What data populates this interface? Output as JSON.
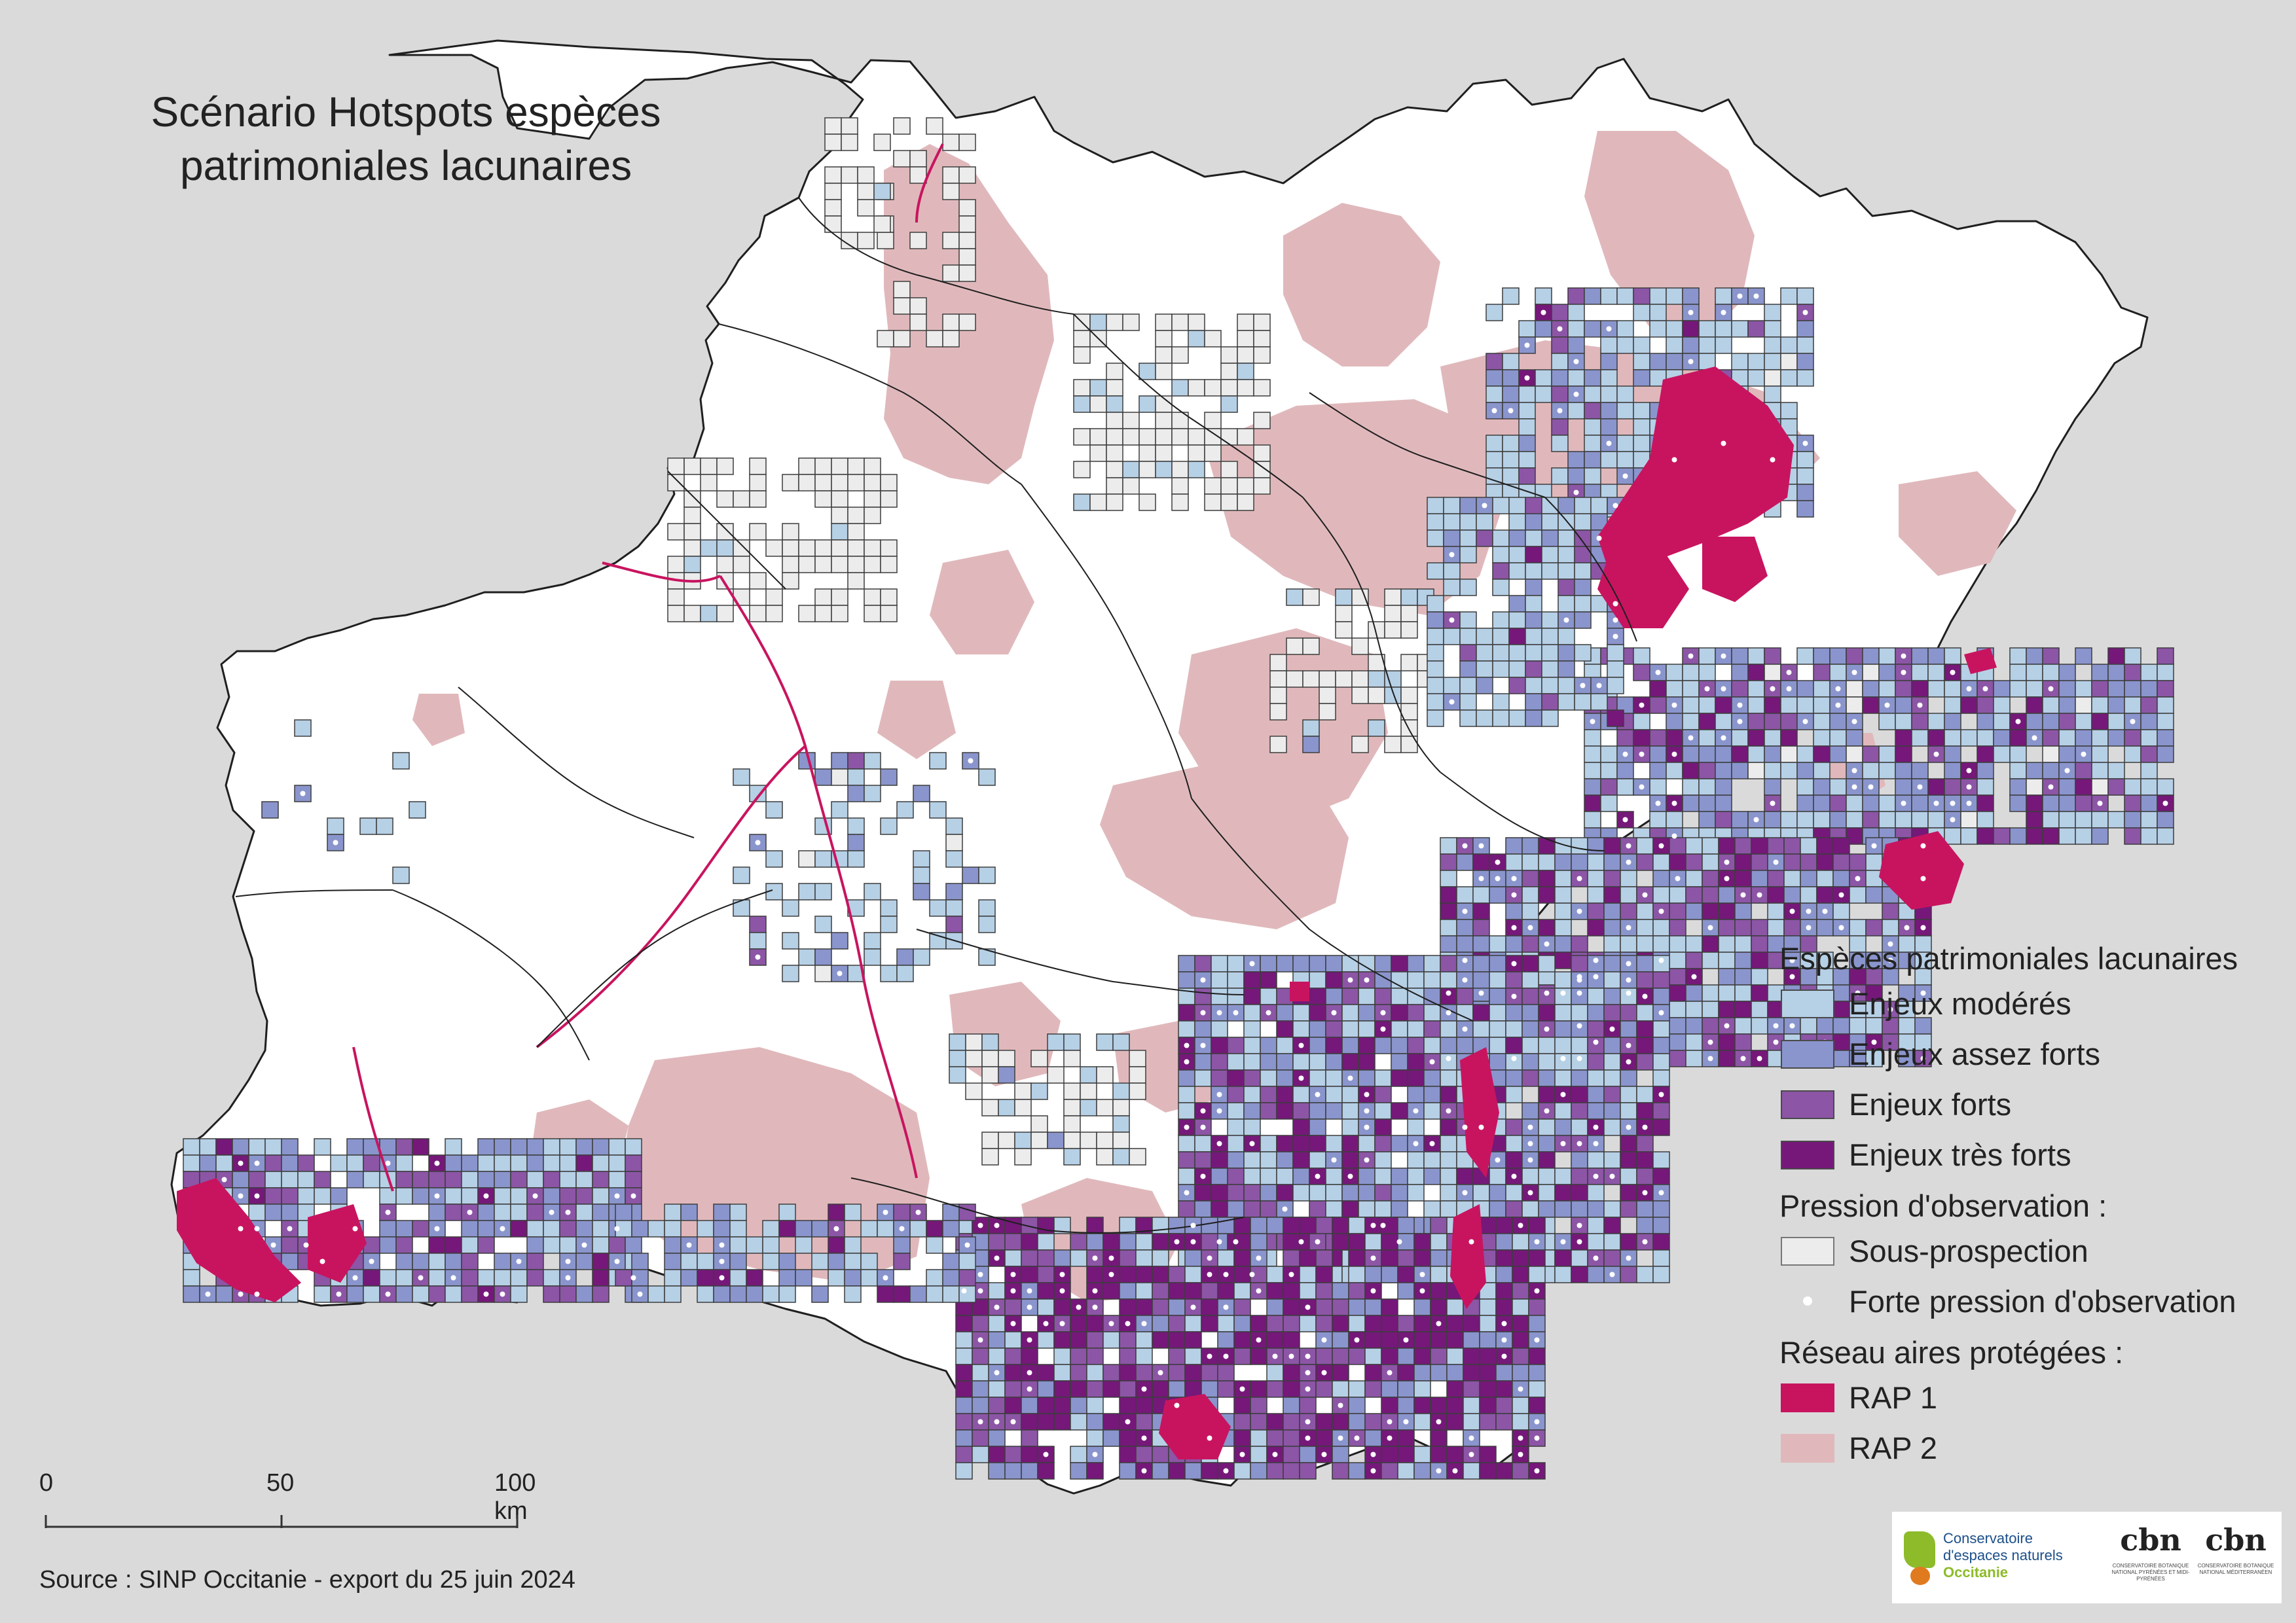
{
  "title": {
    "line1": "Scénario Hotspots espèces",
    "line2": "patrimoniales lacunaires"
  },
  "legend": {
    "heading_species": "Espèces patrimoniales lacunaires",
    "species_classes": [
      {
        "label": "Enjeux modérés",
        "color": "#b6d0e6"
      },
      {
        "label": "Enjeux assez forts",
        "color": "#8a95cd"
      },
      {
        "label": "Enjeux forts",
        "color": "#8c55a6"
      },
      {
        "label": "Enjeux très forts",
        "color": "#751879"
      }
    ],
    "heading_pressure": "Pression d'observation :",
    "pressure_classes": [
      {
        "label": "Sous-prospection",
        "color": "#ececec"
      },
      {
        "label": "Forte pression d'observation",
        "color": "#ffffff"
      }
    ],
    "heading_protected": "Réseau aires protégées :",
    "protected_classes": [
      {
        "label": "RAP 1",
        "color": "#c8145f"
      },
      {
        "label": "RAP 2",
        "color": "#e0b8bb"
      }
    ]
  },
  "scale_bar": {
    "labels": [
      "0",
      "50",
      "100 km"
    ]
  },
  "source": "Source : SINP Occitanie - export du 25 juin 2024",
  "logos": {
    "cen": {
      "line1": "Conservatoire",
      "line2": "d'espaces naturels",
      "line3": "Occitanie"
    },
    "cbn_pyrenees": {
      "word": "cbn",
      "small": "CONSERVATOIRE BOTANIQUE NATIONAL PYRÉNÉES ET MIDI-PYRÉNÉES"
    },
    "cbn_med": {
      "word": "cbn",
      "small": "CONSERVATOIRE BOTANIQUE NATIONAL MÉDITERRANÉEN"
    }
  },
  "map_colors": {
    "background": "#dadada",
    "region_fill": "#ffffff",
    "boundary": "#1f1f1f",
    "rap1": "#c8145f",
    "rap2": "#e0b8bb",
    "sea": "#dadada"
  },
  "map_features": {
    "grid_cell_classes": [
      "moderate",
      "fairly_strong",
      "strong",
      "very_strong",
      "under_prospected"
    ],
    "observation_pressure_marker": "white-dot"
  }
}
